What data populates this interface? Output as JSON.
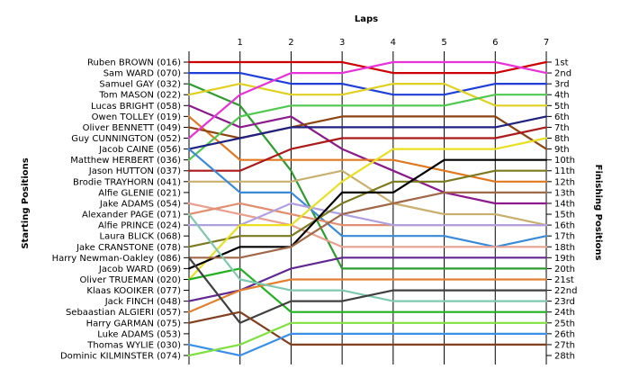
{
  "chart_data": {
    "type": "line",
    "title": "",
    "xlabel": "Laps",
    "ylabel_left": "Starting Positions",
    "ylabel_right": "Finishing Positions",
    "x": [
      0,
      1,
      2,
      3,
      4,
      5,
      6,
      7
    ],
    "x_tick_labels": [
      "1",
      "2",
      "3",
      "4",
      "5",
      "6",
      "7"
    ],
    "y_range": [
      1,
      28
    ],
    "y_inverted": true,
    "grid": "vertical",
    "starting_labels": [
      "Ruben BROWN (016)",
      "Sam WARD (070)",
      "Samuel GAY (032)",
      "Tom MASON (022)",
      "Lucas BRIGHT (058)",
      "Owen TOLLEY (019)",
      "Oliver BENNETT (049)",
      "Guy CUNNINGTON (052)",
      "Jacob CAINE (056)",
      "Matthew HERBERT (036)",
      "Jason HUTTON (037)",
      "Brodie TRAYHORN (041)",
      "Alfie GLENIE (021)",
      "Jake ADAMS (054)",
      "Alexander PAGE (071)",
      "Alfie PRINCE (024)",
      "Laura BLICK (068)",
      "Jake CRANSTONE (078)",
      "Harry Newman-Oakley (086)",
      "Jacob WARD (069)",
      "Oliver TRUEMAN (020)",
      "Klaas KOOIKER (077)",
      "Jack FINCH (048)",
      "Sebaastian ALGIERI (057)",
      "Harry GARMAN (075)",
      "Luke ADAMS (053)",
      "Thomas WYLIE (030)",
      "Dominic KILMINSTER (074)"
    ],
    "finishing_labels": [
      "1st",
      "2nd",
      "3rd",
      "4th",
      "5th",
      "6th",
      "7th",
      "8th",
      "9th",
      "10th",
      "11th",
      "12th",
      "13th",
      "14th",
      "15th",
      "16th",
      "17th",
      "18th",
      "19th",
      "20th",
      "21st",
      "22nd",
      "23rd",
      "24th",
      "25th",
      "26th",
      "27th",
      "28th"
    ],
    "series": [
      {
        "color": "#cc0000",
        "values": [
          1,
          1,
          1,
          1,
          2,
          2,
          2,
          1
        ]
      },
      {
        "color": "#1f3fd6",
        "values": [
          2,
          2,
          3,
          3,
          4,
          4,
          3,
          3
        ]
      },
      {
        "color": "#2e9b2e",
        "values": [
          3,
          5,
          11,
          20,
          20,
          20,
          20,
          20
        ]
      },
      {
        "color": "#e0d020",
        "values": [
          4,
          3,
          4,
          4,
          3,
          3,
          5,
          5
        ]
      },
      {
        "color": "#8b1a8b",
        "values": [
          5,
          7,
          6,
          9,
          11,
          13,
          14,
          14
        ]
      },
      {
        "color": "#e07820",
        "values": [
          6,
          10,
          10,
          10,
          10,
          11,
          12,
          12
        ]
      },
      {
        "color": "#8b4513",
        "values": [
          7,
          8,
          7,
          6,
          6,
          6,
          6,
          9
        ]
      },
      {
        "color": "#50c850",
        "values": [
          10,
          6,
          5,
          5,
          5,
          5,
          4,
          4
        ]
      },
      {
        "color": "#e832d8",
        "values": [
          8,
          4,
          2,
          2,
          1,
          1,
          1,
          2
        ]
      },
      {
        "color": "#202080",
        "values": [
          9,
          8,
          7,
          7,
          7,
          7,
          7,
          6
        ]
      },
      {
        "color": "#aa1a1a",
        "values": [
          11,
          11,
          9,
          8,
          8,
          8,
          8,
          7
        ]
      },
      {
        "color": "#c8b070",
        "values": [
          12,
          12,
          12,
          11,
          14,
          15,
          15,
          16
        ]
      },
      {
        "color": "#3a8ad8",
        "values": [
          9,
          13,
          13,
          17,
          17,
          17,
          18,
          17
        ]
      },
      {
        "color": "#e8a090",
        "values": [
          14,
          15,
          16,
          18,
          18,
          18,
          18,
          18
        ]
      },
      {
        "color": "#e09070",
        "values": [
          15,
          14,
          15,
          16,
          16,
          16,
          16,
          16
        ]
      },
      {
        "color": "#b0a0e0",
        "values": [
          16,
          16,
          14,
          15,
          16,
          16,
          16,
          16
        ]
      },
      {
        "color": "#7a7a20",
        "values": [
          18,
          17,
          17,
          14,
          12,
          12,
          11,
          11
        ]
      },
      {
        "color": "#e8e020",
        "values": [
          21,
          16,
          16,
          12,
          9,
          9,
          9,
          8
        ]
      },
      {
        "color": "#000000",
        "values": [
          20,
          18,
          18,
          13,
          13,
          10,
          10,
          10
        ]
      },
      {
        "color": "#a06848",
        "values": [
          19,
          19,
          18,
          15,
          14,
          13,
          13,
          13
        ]
      },
      {
        "color": "#602890",
        "values": [
          23,
          22,
          20,
          19,
          19,
          19,
          19,
          19
        ]
      },
      {
        "color": "#20b020",
        "values": [
          21,
          20,
          24,
          24,
          24,
          24,
          24,
          24
        ]
      },
      {
        "color": "#e08030",
        "values": [
          24,
          22,
          21,
          21,
          21,
          21,
          21,
          21
        ]
      },
      {
        "color": "#80c8b0",
        "values": [
          15,
          21,
          22,
          22,
          23,
          23,
          23,
          23
        ]
      },
      {
        "color": "#404040",
        "values": [
          19,
          25,
          23,
          23,
          22,
          22,
          22,
          22
        ]
      },
      {
        "color": "#804020",
        "values": [
          25,
          24,
          27,
          27,
          27,
          27,
          27,
          27
        ]
      },
      {
        "color": "#3a90e8",
        "values": [
          27,
          28,
          26,
          26,
          26,
          26,
          26,
          26
        ]
      },
      {
        "color": "#80e040",
        "values": [
          28,
          27,
          25,
          25,
          25,
          25,
          25,
          25
        ]
      }
    ]
  }
}
